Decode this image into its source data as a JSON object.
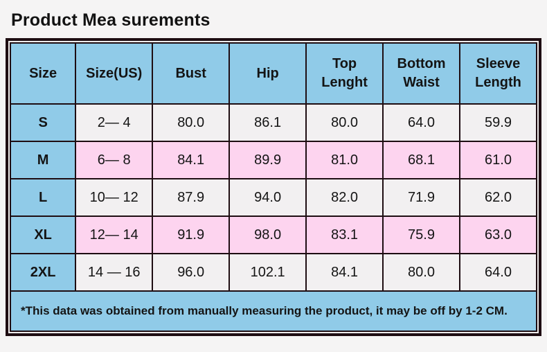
{
  "page": {
    "title": "Product Mea surements"
  },
  "table": {
    "headers": [
      "Size",
      "Size(US)",
      "Bust",
      "Hip",
      "Top Lenght",
      "Bottom Waist",
      "Sleeve Length"
    ],
    "rows": [
      [
        "S",
        "2— 4",
        "80.0",
        "86.1",
        "80.0",
        "64.0",
        "59.9"
      ],
      [
        "M",
        "6— 8",
        "84.1",
        "89.9",
        "81.0",
        "68.1",
        "61.0"
      ],
      [
        "L",
        "10— 12",
        "87.9",
        "94.0",
        "82.0",
        "71.9",
        "62.0"
      ],
      [
        "XL",
        "12— 14",
        "91.9",
        "98.0",
        "83.1",
        "75.9",
        "63.0"
      ],
      [
        "2XL",
        "14 — 16",
        "96.0",
        "102.1",
        "84.1",
        "80.0",
        "64.0"
      ]
    ],
    "footnote": "*This data was obtained from manually measuring the product, it may be off by 1-2 CM.",
    "colors": {
      "header_blue": "#90cbe8",
      "row_gray": "#f2f0f1",
      "row_pink": "#fdd4ef",
      "footnote_pink": "#fdd6f0",
      "border_dark": "#1e0d12",
      "background": "#f5f4f4"
    }
  }
}
